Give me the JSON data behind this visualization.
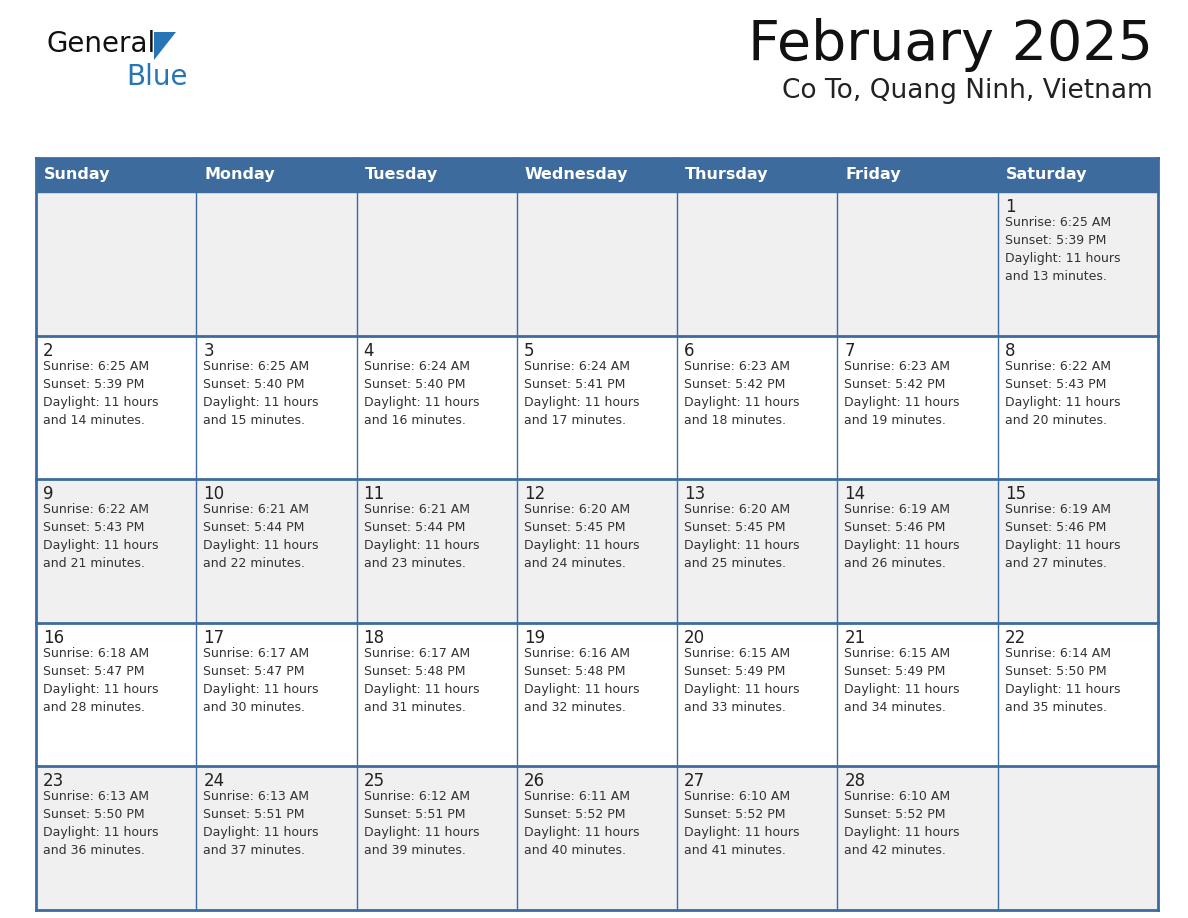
{
  "title": "February 2025",
  "subtitle": "Co To, Quang Ninh, Vietnam",
  "days_of_week": [
    "Sunday",
    "Monday",
    "Tuesday",
    "Wednesday",
    "Thursday",
    "Friday",
    "Saturday"
  ],
  "header_bg": "#3d6b9e",
  "header_text": "#ffffff",
  "cell_bg": "#ffffff",
  "row1_bg": "#f0f0f0",
  "border_color": "#3d6b9e",
  "inner_border_color": "#3d6b9e",
  "day_num_color": "#222222",
  "text_color": "#333333",
  "title_color": "#111111",
  "subtitle_color": "#222222",
  "logo_general_color": "#111111",
  "logo_blue_color": "#2575b7",
  "calendar_data": [
    [
      null,
      null,
      null,
      null,
      null,
      null,
      {
        "day": 1,
        "sunrise": "6:25 AM",
        "sunset": "5:39 PM",
        "daylight": "11 hours and 13 minutes."
      }
    ],
    [
      {
        "day": 2,
        "sunrise": "6:25 AM",
        "sunset": "5:39 PM",
        "daylight": "11 hours and 14 minutes."
      },
      {
        "day": 3,
        "sunrise": "6:25 AM",
        "sunset": "5:40 PM",
        "daylight": "11 hours and 15 minutes."
      },
      {
        "day": 4,
        "sunrise": "6:24 AM",
        "sunset": "5:40 PM",
        "daylight": "11 hours and 16 minutes."
      },
      {
        "day": 5,
        "sunrise": "6:24 AM",
        "sunset": "5:41 PM",
        "daylight": "11 hours and 17 minutes."
      },
      {
        "day": 6,
        "sunrise": "6:23 AM",
        "sunset": "5:42 PM",
        "daylight": "11 hours and 18 minutes."
      },
      {
        "day": 7,
        "sunrise": "6:23 AM",
        "sunset": "5:42 PM",
        "daylight": "11 hours and 19 minutes."
      },
      {
        "day": 8,
        "sunrise": "6:22 AM",
        "sunset": "5:43 PM",
        "daylight": "11 hours and 20 minutes."
      }
    ],
    [
      {
        "day": 9,
        "sunrise": "6:22 AM",
        "sunset": "5:43 PM",
        "daylight": "11 hours and 21 minutes."
      },
      {
        "day": 10,
        "sunrise": "6:21 AM",
        "sunset": "5:44 PM",
        "daylight": "11 hours and 22 minutes."
      },
      {
        "day": 11,
        "sunrise": "6:21 AM",
        "sunset": "5:44 PM",
        "daylight": "11 hours and 23 minutes."
      },
      {
        "day": 12,
        "sunrise": "6:20 AM",
        "sunset": "5:45 PM",
        "daylight": "11 hours and 24 minutes."
      },
      {
        "day": 13,
        "sunrise": "6:20 AM",
        "sunset": "5:45 PM",
        "daylight": "11 hours and 25 minutes."
      },
      {
        "day": 14,
        "sunrise": "6:19 AM",
        "sunset": "5:46 PM",
        "daylight": "11 hours and 26 minutes."
      },
      {
        "day": 15,
        "sunrise": "6:19 AM",
        "sunset": "5:46 PM",
        "daylight": "11 hours and 27 minutes."
      }
    ],
    [
      {
        "day": 16,
        "sunrise": "6:18 AM",
        "sunset": "5:47 PM",
        "daylight": "11 hours and 28 minutes."
      },
      {
        "day": 17,
        "sunrise": "6:17 AM",
        "sunset": "5:47 PM",
        "daylight": "11 hours and 30 minutes."
      },
      {
        "day": 18,
        "sunrise": "6:17 AM",
        "sunset": "5:48 PM",
        "daylight": "11 hours and 31 minutes."
      },
      {
        "day": 19,
        "sunrise": "6:16 AM",
        "sunset": "5:48 PM",
        "daylight": "11 hours and 32 minutes."
      },
      {
        "day": 20,
        "sunrise": "6:15 AM",
        "sunset": "5:49 PM",
        "daylight": "11 hours and 33 minutes."
      },
      {
        "day": 21,
        "sunrise": "6:15 AM",
        "sunset": "5:49 PM",
        "daylight": "11 hours and 34 minutes."
      },
      {
        "day": 22,
        "sunrise": "6:14 AM",
        "sunset": "5:50 PM",
        "daylight": "11 hours and 35 minutes."
      }
    ],
    [
      {
        "day": 23,
        "sunrise": "6:13 AM",
        "sunset": "5:50 PM",
        "daylight": "11 hours and 36 minutes."
      },
      {
        "day": 24,
        "sunrise": "6:13 AM",
        "sunset": "5:51 PM",
        "daylight": "11 hours and 37 minutes."
      },
      {
        "day": 25,
        "sunrise": "6:12 AM",
        "sunset": "5:51 PM",
        "daylight": "11 hours and 39 minutes."
      },
      {
        "day": 26,
        "sunrise": "6:11 AM",
        "sunset": "5:52 PM",
        "daylight": "11 hours and 40 minutes."
      },
      {
        "day": 27,
        "sunrise": "6:10 AM",
        "sunset": "5:52 PM",
        "daylight": "11 hours and 41 minutes."
      },
      {
        "day": 28,
        "sunrise": "6:10 AM",
        "sunset": "5:52 PM",
        "daylight": "11 hours and 42 minutes."
      },
      null
    ]
  ]
}
